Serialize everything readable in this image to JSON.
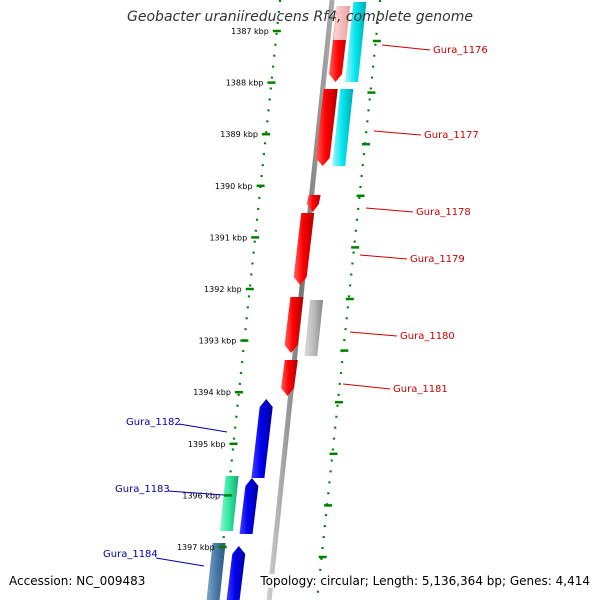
{
  "title": "Geobacter uraniireducens Rf4, complete genome",
  "accession": "Accession: NC_009483",
  "topology": "Topology: circular; Length: 5,136,364 bp; Genes: 4,414",
  "kbp_ticks": [
    {
      "label": "1387 kbp",
      "kbp": 1387
    },
    {
      "label": "1388 kbp",
      "kbp": 1388
    },
    {
      "label": "1389 kbp",
      "kbp": 1389
    },
    {
      "label": "1390 kbp",
      "kbp": 1390
    },
    {
      "label": "1391 kbp",
      "kbp": 1391
    },
    {
      "label": "1392 kbp",
      "kbp": 1392
    },
    {
      "label": "1393 kbp",
      "kbp": 1393
    },
    {
      "label": "1394 kbp",
      "kbp": 1394
    },
    {
      "label": "1395 kbp",
      "kbp": 1395
    },
    {
      "label": "1396 kbp",
      "kbp": 1396
    },
    {
      "label": "1397 kbp",
      "kbp": 1397
    }
  ],
  "genes": [
    {
      "label": "Gura_1176",
      "strand": "reverse",
      "color": "#cc0000"
    },
    {
      "label": "Gura_1177",
      "strand": "reverse",
      "color": "#cc0000"
    },
    {
      "label": "Gura_1178",
      "strand": "reverse",
      "color": "#cc0000"
    },
    {
      "label": "Gura_1179",
      "strand": "reverse",
      "color": "#cc0000"
    },
    {
      "label": "Gura_1180",
      "strand": "reverse",
      "color": "#cc0000"
    },
    {
      "label": "Gura_1181",
      "strand": "reverse",
      "color": "#cc0000"
    },
    {
      "label": "Gura_1182",
      "strand": "forward",
      "color": "#0000aa"
    },
    {
      "label": "Gura_1183",
      "strand": "forward",
      "color": "#0000aa"
    },
    {
      "label": "Gura_1184",
      "strand": "forward",
      "color": "#0000aa"
    }
  ],
  "colors": {
    "backbone": "#888888",
    "ticks": "#008000",
    "reverse_cds": "#ff0000",
    "forward_cds": "#0000ee",
    "cyan_feature": "#00e5ee",
    "pink_feature": "#f4b8b8",
    "gray_feature": "#aaaaaa",
    "teal_feature": "#2ee8a0",
    "steel_feature": "#4a7aa8"
  }
}
